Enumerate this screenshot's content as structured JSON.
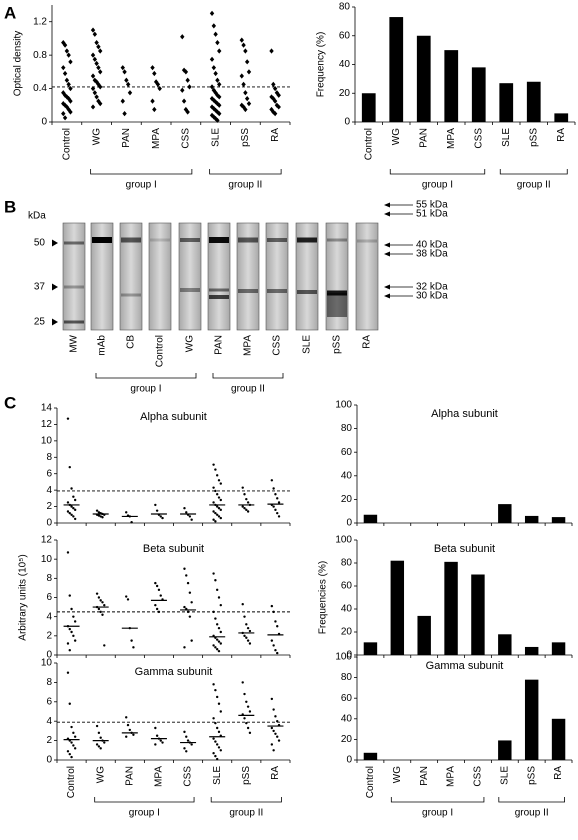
{
  "panels": [
    "A",
    "B",
    "C"
  ],
  "chart_data": [
    {
      "type": "strip",
      "marker": "diamond",
      "color": "#000000",
      "ylabel": "Optical density",
      "categories": [
        "Control",
        "WG",
        "PAN",
        "MPA",
        "CSS",
        "SLE",
        "pSS",
        "RA"
      ],
      "points": [
        [
          0.95,
          0.92,
          0.85,
          0.8,
          0.72,
          0.65,
          0.58,
          0.5,
          0.45,
          0.4,
          0.35,
          0.32,
          0.3,
          0.28,
          0.25,
          0.22,
          0.2,
          0.18,
          0.15,
          0.12,
          0.1,
          0.05
        ],
        [
          1.1,
          1.05,
          0.95,
          0.9,
          0.85,
          0.8,
          0.75,
          0.7,
          0.65,
          0.6,
          0.55,
          0.5,
          0.48,
          0.45,
          0.42,
          0.4,
          0.35,
          0.3,
          0.25,
          0.22,
          0.18
        ],
        [
          0.65,
          0.6,
          0.5,
          0.45,
          0.35,
          0.25,
          0.1
        ],
        [
          0.65,
          0.58,
          0.48,
          0.45,
          0.4,
          0.25,
          0.15
        ],
        [
          1.02,
          0.62,
          0.6,
          0.5,
          0.42,
          0.38,
          0.25,
          0.15,
          0.12
        ],
        [
          1.3,
          1.15,
          1.05,
          0.95,
          0.85,
          0.75,
          0.65,
          0.58,
          0.5,
          0.45,
          0.42,
          0.38,
          0.35,
          0.32,
          0.3,
          0.28,
          0.26,
          0.24,
          0.22,
          0.2,
          0.18,
          0.16,
          0.14,
          0.12,
          0.1,
          0.08,
          0.06,
          0.04,
          0.02
        ],
        [
          0.98,
          0.92,
          0.85,
          0.72,
          0.6,
          0.55,
          0.45,
          0.35,
          0.28,
          0.22,
          0.2,
          0.18,
          0.15
        ],
        [
          0.85,
          0.45,
          0.4,
          0.35,
          0.32,
          0.3,
          0.28,
          0.25,
          0.2,
          0.18,
          0.15,
          0.12,
          0.1
        ]
      ],
      "threshold": 0.42,
      "ylim": [
        0,
        1.4
      ],
      "yticks": [
        0,
        0.4,
        0.8,
        1.2
      ],
      "groups": [
        "group I",
        "group II"
      ]
    },
    {
      "type": "bar",
      "color": "#000000",
      "ylabel": "Frequency (%)",
      "categories": [
        "Control",
        "WG",
        "PAN",
        "MPA",
        "CSS",
        "SLE",
        "pSS",
        "RA"
      ],
      "values": [
        20,
        73,
        60,
        50,
        38,
        27,
        28,
        6
      ],
      "ylim": [
        0,
        80
      ],
      "yticks": [
        0,
        20,
        40,
        60,
        80
      ],
      "groups": [
        "group I",
        "group II"
      ]
    },
    {
      "type": "strip",
      "marker": "dot",
      "color": "#000000",
      "title": "Alpha subunit",
      "points": [
        [
          12.7,
          6.8,
          4.2,
          3.2,
          2.8,
          2.5,
          2.2,
          2,
          1.8,
          1.6,
          1.4,
          1.2,
          1,
          0.8,
          0.5
        ],
        [
          1.5,
          1.3,
          1.2,
          1.1,
          1,
          1,
          0.9,
          0.8,
          0.7
        ],
        [
          1.3,
          0.9,
          0.8,
          0.1
        ],
        [
          2.2,
          1.5,
          1,
          0.8,
          0.6
        ],
        [
          1.8,
          1.3,
          1,
          0.8,
          0.4
        ],
        [
          7.1,
          6.5,
          5.8,
          5.2,
          4.8,
          4.3,
          3.9,
          3.5,
          3.1,
          2.8,
          2.5,
          2.2,
          2,
          1.8,
          1.6,
          1.4,
          1.2,
          1,
          0.8,
          0.6,
          0.4,
          0.2
        ],
        [
          4.3,
          3.5,
          2.9,
          2.5,
          2.2,
          2,
          1.8,
          1.6,
          1.4
        ],
        [
          5.2,
          4.2,
          3.5,
          3,
          2.5,
          2.2,
          2,
          1.6,
          1.2,
          0.8
        ]
      ],
      "means": [
        2.2,
        1.1,
        0.8,
        1.1,
        1.1,
        2.2,
        2.2,
        2.3
      ],
      "threshold": 3.9,
      "ylim": [
        0,
        14
      ],
      "yticks": [
        0,
        2,
        4,
        6,
        8,
        10,
        12,
        14
      ]
    },
    {
      "type": "strip",
      "marker": "dot",
      "color": "#000000",
      "title": "Beta subunit",
      "ylabel": "Arbitrary units (10⁵)",
      "points": [
        [
          10.7,
          6.2,
          4.8,
          4,
          3.5,
          3,
          2.7,
          2.4,
          2,
          1.5,
          1.2,
          0.5
        ],
        [
          6.4,
          6,
          5.7,
          5.5,
          5.2,
          5,
          4.8,
          4.5,
          4.2,
          1
        ],
        [
          6.1,
          5.8,
          2.8,
          1.5,
          0.8
        ],
        [
          7.5,
          7.2,
          6.8,
          6.2,
          5.8,
          5.2,
          4.8,
          4.5
        ],
        [
          9,
          8.3,
          7.5,
          6.5,
          5.5,
          5,
          4.8,
          4.5,
          4,
          1.5,
          0.8
        ],
        [
          8.5,
          7.8,
          6.8,
          6,
          5.2,
          4.5,
          3.8,
          3.2,
          2.8,
          2.4,
          2,
          1.8,
          1.6,
          1.4,
          1.2,
          1,
          0.8,
          0.6,
          0.4
        ],
        [
          5.3,
          4,
          3.2,
          2.8,
          2.5,
          2.3,
          2,
          1.8,
          1.5,
          1.2
        ],
        [
          5.1,
          4.5,
          3.5,
          3,
          2.2,
          1.5,
          1,
          0.5,
          0.2
        ]
      ],
      "means": [
        3,
        5,
        2.8,
        5.7,
        4.7,
        1.9,
        2.3,
        2.1
      ],
      "threshold": 4.5,
      "ylim": [
        0,
        12
      ],
      "yticks": [
        0,
        2,
        4,
        6,
        8,
        10,
        12
      ]
    },
    {
      "type": "strip",
      "marker": "dot",
      "color": "#000000",
      "title": "Gamma subunit",
      "categories": [
        "Control",
        "WG",
        "PAN",
        "MPA",
        "CSS",
        "SLE",
        "pSS",
        "RA"
      ],
      "points": [
        [
          9,
          5.8,
          3.4,
          2.8,
          2.4,
          2.2,
          2,
          1.8,
          1.5,
          1.2,
          0.9,
          0.6,
          0.3
        ],
        [
          3.5,
          2.8,
          2.3,
          2,
          1.8,
          1.6,
          1.4,
          1.2
        ],
        [
          4.4,
          3.6,
          3.1,
          2.8,
          2.6,
          2.4
        ],
        [
          3.3,
          2.5,
          2.2,
          2,
          1.8,
          1.6
        ],
        [
          2.9,
          2.4,
          2,
          1.8,
          1.6,
          1.2,
          0.9
        ],
        [
          7.8,
          7.2,
          6.5,
          5.8,
          5,
          4.3,
          3.8,
          3.3,
          2.9,
          2.5,
          2.2,
          1.9,
          1.6,
          1.3,
          1,
          0.7,
          0.4,
          0.1
        ],
        [
          8,
          6.8,
          6,
          5.5,
          5,
          4.7,
          4.3,
          3.8,
          3.3,
          2.8
        ],
        [
          6.3,
          5.2,
          4.5,
          4,
          3.6,
          3.3,
          3,
          2.7,
          2.4,
          2,
          1.6,
          1
        ]
      ],
      "means": [
        2.1,
        2,
        2.8,
        2.2,
        1.8,
        2.4,
        4.6,
        3.5
      ],
      "threshold": 3.9,
      "ylim": [
        0,
        10
      ],
      "yticks": [
        0,
        2,
        4,
        6,
        8,
        10
      ],
      "groups": [
        "group I",
        "group II"
      ]
    },
    {
      "type": "bar",
      "color": "#000000",
      "title": "Alpha subunit",
      "values": [
        7,
        0,
        0,
        0,
        0,
        16,
        6,
        5
      ],
      "ylim": [
        0,
        100
      ],
      "yticks": [
        0,
        20,
        40,
        60,
        80,
        100
      ]
    },
    {
      "type": "bar",
      "color": "#000000",
      "title": "Beta subunit",
      "ylabel": "Frequencies (%)",
      "values": [
        11,
        82,
        34,
        81,
        70,
        18,
        7,
        11
      ],
      "ylim": [
        0,
        100
      ],
      "yticks": [
        0,
        20,
        40,
        60,
        80,
        100
      ]
    },
    {
      "type": "bar",
      "color": "#000000",
      "title": "Gamma subunit",
      "categories": [
        "Control",
        "WG",
        "PAN",
        "MPA",
        "CSS",
        "SLE",
        "pSS",
        "RA"
      ],
      "values": [
        7,
        0,
        0,
        0,
        0,
        19,
        78,
        40
      ],
      "ylim": [
        0,
        100
      ],
      "yticks": [
        0,
        20,
        40,
        60,
        80,
        100
      ],
      "groups": [
        "group I",
        "group II"
      ]
    }
  ],
  "blot": {
    "lanes": [
      "MW",
      "mAb",
      "CB",
      "Control",
      "WG",
      "PAN",
      "MPA",
      "CSS",
      "SLE",
      "pSS",
      "RA"
    ],
    "left_label": "kDa",
    "left_markers": [
      "50",
      "37",
      "25"
    ],
    "right_markers": [
      "55 kDa",
      "51 kDa",
      "40 kDa",
      "38 kDa",
      "32 kDa",
      "30 kDa"
    ],
    "groups": [
      "group I",
      "group II"
    ]
  }
}
